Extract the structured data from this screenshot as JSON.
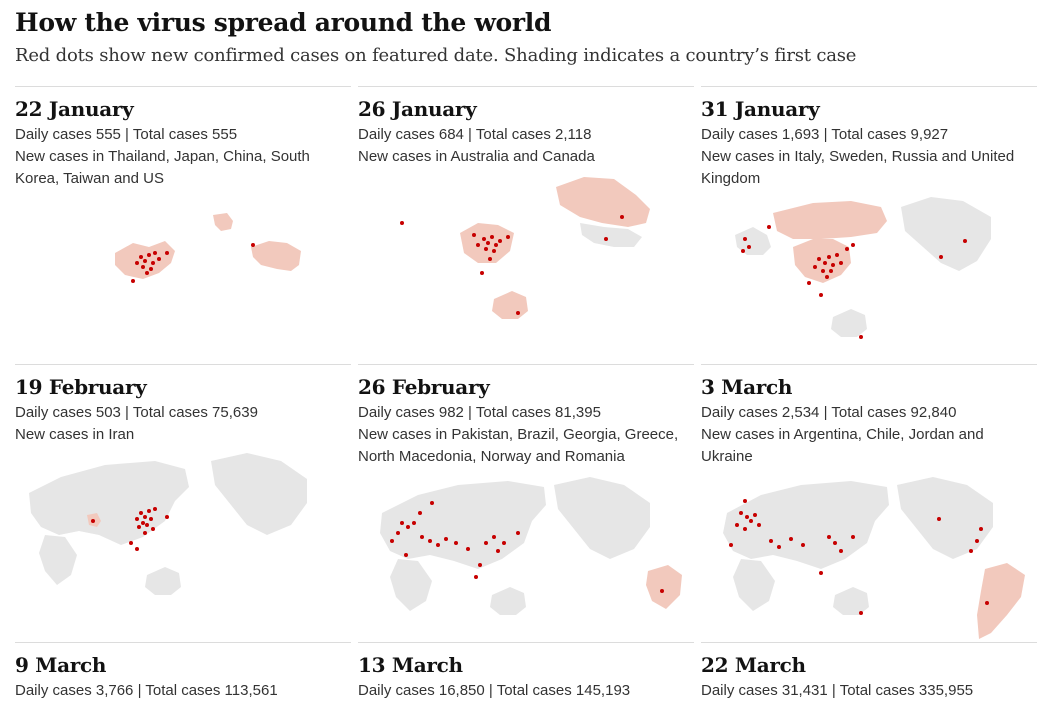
{
  "header": {
    "title": "How the virus spread around the world",
    "subtitle": "Red dots show new confirmed cases on featured date. Shading indicates a country’s first case"
  },
  "colors": {
    "dot": "#c70000",
    "land": "#e6e6e6",
    "first_case": "#f2c9bd"
  },
  "panels": [
    {
      "date": "22 January",
      "stats": "Daily cases 555 | Total cases 555",
      "new_cases": "New cases in Thailand, Japan, China, South Korea, Taiwan and US"
    },
    {
      "date": "26 January",
      "stats": "Daily cases 684 | Total cases 2,118",
      "new_cases": "New cases in Australia and Canada"
    },
    {
      "date": "31 January",
      "stats": "Daily cases 1,693 | Total cases 9,927",
      "new_cases": "New cases in Italy, Sweden, Russia and United Kingdom"
    },
    {
      "date": "19 February",
      "stats": "Daily cases 503 | Total cases 75,639",
      "new_cases": "New cases in Iran"
    },
    {
      "date": "26 February",
      "stats": "Daily cases 982 | Total cases 81,395",
      "new_cases": "New cases in Pakistan, Brazil, Georgia, Greece, North Macedonia, Norway and Romania"
    },
    {
      "date": "3 March",
      "stats": "Daily cases 2,534 | Total cases 92,840",
      "new_cases": "New cases in Argentina, Chile, Jordan and Ukraine"
    },
    {
      "date": "9 March",
      "stats": "Daily cases 3,766 | Total cases 113,561",
      "new_cases": ""
    },
    {
      "date": "13 March",
      "stats": "Daily cases 16,850 | Total cases 145,193",
      "new_cases": ""
    },
    {
      "date": "22 March",
      "stats": "Daily cases 31,431 | Total cases 335,955",
      "new_cases": ""
    }
  ]
}
